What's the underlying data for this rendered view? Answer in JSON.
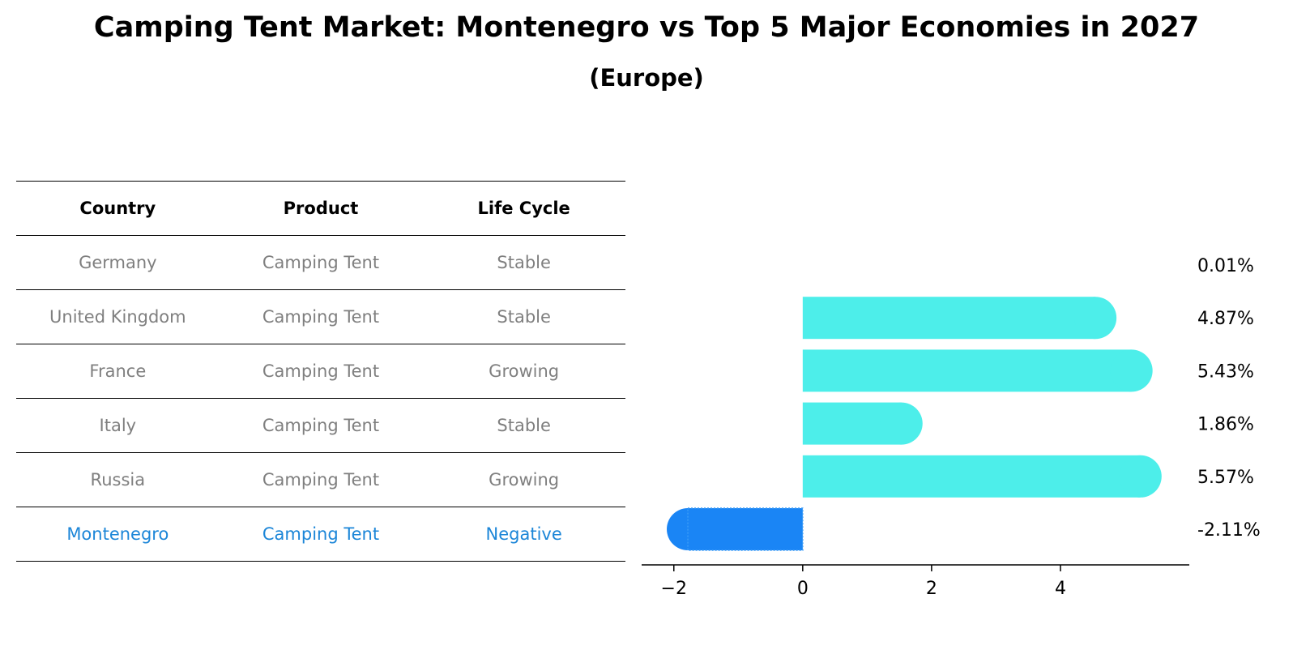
{
  "chart_data": {
    "type": "bar",
    "title": "Camping Tent Market: Montenegro vs Top 5 Major Economies in 2027",
    "subtitle": "(Europe)",
    "table": {
      "columns": [
        "Country",
        "Product",
        "Life Cycle"
      ],
      "rows": [
        [
          "Germany",
          "Camping Tent",
          "Stable"
        ],
        [
          "United Kingdom",
          "Camping Tent",
          "Stable"
        ],
        [
          "France",
          "Camping Tent",
          "Growing"
        ],
        [
          "Italy",
          "Camping Tent",
          "Stable"
        ],
        [
          "Russia",
          "Camping Tent",
          "Growing"
        ],
        [
          "Montenegro",
          "Camping Tent",
          "Negative"
        ]
      ],
      "highlight_row": 5
    },
    "categories": [
      "Germany",
      "United Kingdom",
      "France",
      "Italy",
      "Russia",
      "Montenegro"
    ],
    "values": [
      0.01,
      4.87,
      5.43,
      1.86,
      5.57,
      -2.11
    ],
    "value_labels": [
      "0.01%",
      "4.87%",
      "5.43%",
      "1.86%",
      "5.57%",
      "-2.11%"
    ],
    "xlim": [
      -2.5,
      6
    ],
    "xticks": [
      -2,
      0,
      2,
      4
    ],
    "xtick_labels": [
      "−2",
      "0",
      "2",
      "4"
    ],
    "colors": {
      "positive": "#4deeea",
      "negative": "#1a85f5",
      "highlight_text": "#1c86d8",
      "muted_text": "#7f7f7f"
    }
  }
}
